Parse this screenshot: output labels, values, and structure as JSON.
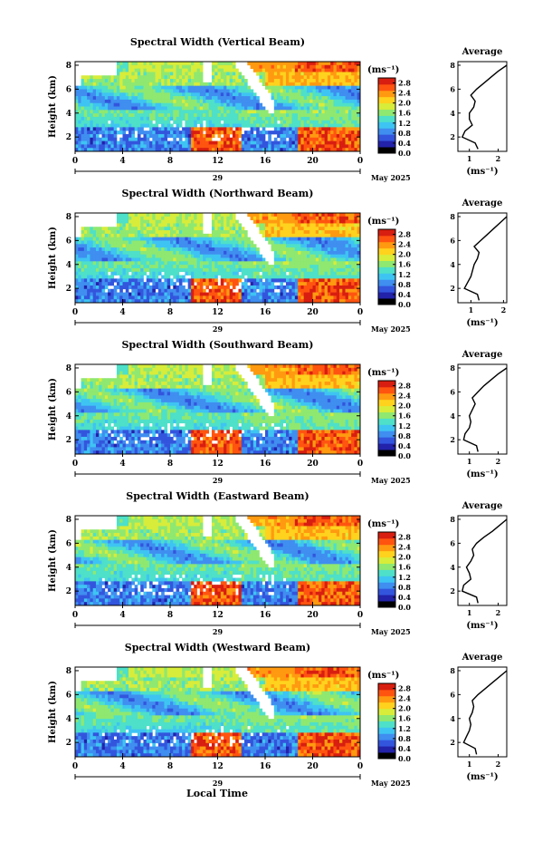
{
  "chart_data": {
    "type": "heatmap",
    "common": {
      "height_label": "Height (km)",
      "height_ticks": [
        "2",
        "4",
        "6",
        "8"
      ],
      "time_ticks": [
        "0",
        "4",
        "8",
        "12",
        "16",
        "20",
        "0"
      ],
      "date_day": "29",
      "date_month": "May 2025",
      "colorbar_unit": "(ms⁻¹)",
      "colorbar_ticks": [
        "0.0",
        "0.4",
        "0.8",
        "1.2",
        "1.6",
        "2.0",
        "2.4",
        "2.8"
      ],
      "colorbar_range": [
        0.0,
        3.0
      ],
      "average_title": "Average",
      "average_xlabel": "(ms⁻¹)",
      "xlabel": "Local Time",
      "colors": [
        "#000000",
        "#2222aa",
        "#3355dd",
        "#3f8ef0",
        "#3ec4f2",
        "#4ee0c8",
        "#8fe870",
        "#d8ec3a",
        "#ffd21e",
        "#ff9a10",
        "#ff5410",
        "#d81e10"
      ]
    },
    "panels": [
      {
        "title": "Spectral Width (Vertical Beam)",
        "avg_ticks": [
          "1",
          "2"
        ],
        "avg_xlim": [
          0.6,
          2.3
        ],
        "avg_profile": {
          "height_km": [
            1,
            1.5,
            2,
            2.5,
            3,
            3.5,
            4,
            4.5,
            5,
            5.5,
            6,
            6.5,
            7,
            7.5,
            8
          ],
          "width_ms": [
            1.3,
            1.2,
            0.75,
            0.85,
            1.1,
            1.0,
            1.0,
            1.15,
            1.2,
            1.05,
            1.25,
            1.5,
            1.75,
            2.0,
            2.3
          ]
        }
      },
      {
        "title": "Spectral Width (Northward Beam)",
        "avg_ticks": [
          "1",
          "2"
        ],
        "avg_xlim": [
          0.6,
          2.1
        ],
        "avg_profile": {
          "height_km": [
            1,
            1.5,
            2,
            2.5,
            3,
            3.5,
            4,
            4.5,
            5,
            5.5,
            6,
            6.5,
            7,
            7.5,
            8
          ],
          "width_ms": [
            1.25,
            1.2,
            0.8,
            0.9,
            1.0,
            1.05,
            1.1,
            1.2,
            1.25,
            1.1,
            1.3,
            1.5,
            1.7,
            1.9,
            2.1
          ]
        }
      },
      {
        "title": "Spectral Width (Southward Beam)",
        "avg_ticks": [
          "1",
          "2"
        ],
        "avg_xlim": [
          0.6,
          2.3
        ],
        "avg_profile": {
          "height_km": [
            1,
            1.5,
            2,
            2.5,
            3,
            3.5,
            4,
            4.5,
            5,
            5.5,
            6,
            6.5,
            7,
            7.5,
            8
          ],
          "width_ms": [
            1.3,
            1.25,
            0.8,
            0.85,
            1.0,
            1.05,
            1.0,
            1.1,
            1.2,
            1.1,
            1.3,
            1.5,
            1.75,
            2.0,
            2.3
          ]
        }
      },
      {
        "title": "Spectral Width (Eastward Beam)",
        "avg_ticks": [
          "1",
          "2"
        ],
        "avg_xlim": [
          0.6,
          2.3
        ],
        "avg_profile": {
          "height_km": [
            1,
            1.5,
            2,
            2.5,
            3,
            3.5,
            4,
            4.5,
            5,
            5.5,
            6,
            6.5,
            7,
            7.5,
            8
          ],
          "width_ms": [
            1.3,
            1.25,
            0.75,
            0.8,
            1.05,
            1.0,
            0.9,
            1.05,
            1.15,
            1.1,
            1.25,
            1.5,
            1.8,
            2.05,
            2.3
          ]
        }
      },
      {
        "title": "Spectral Width (Westward Beam)",
        "avg_ticks": [
          "1",
          "2"
        ],
        "avg_xlim": [
          0.6,
          2.3
        ],
        "avg_profile": {
          "height_km": [
            1,
            1.5,
            2,
            2.5,
            3,
            3.5,
            4,
            4.5,
            5,
            5.5,
            6,
            6.5,
            7,
            7.5,
            8
          ],
          "width_ms": [
            1.25,
            1.2,
            0.8,
            0.9,
            1.0,
            1.05,
            1.0,
            1.1,
            1.15,
            1.1,
            1.3,
            1.55,
            1.8,
            2.05,
            2.3
          ]
        }
      }
    ]
  }
}
